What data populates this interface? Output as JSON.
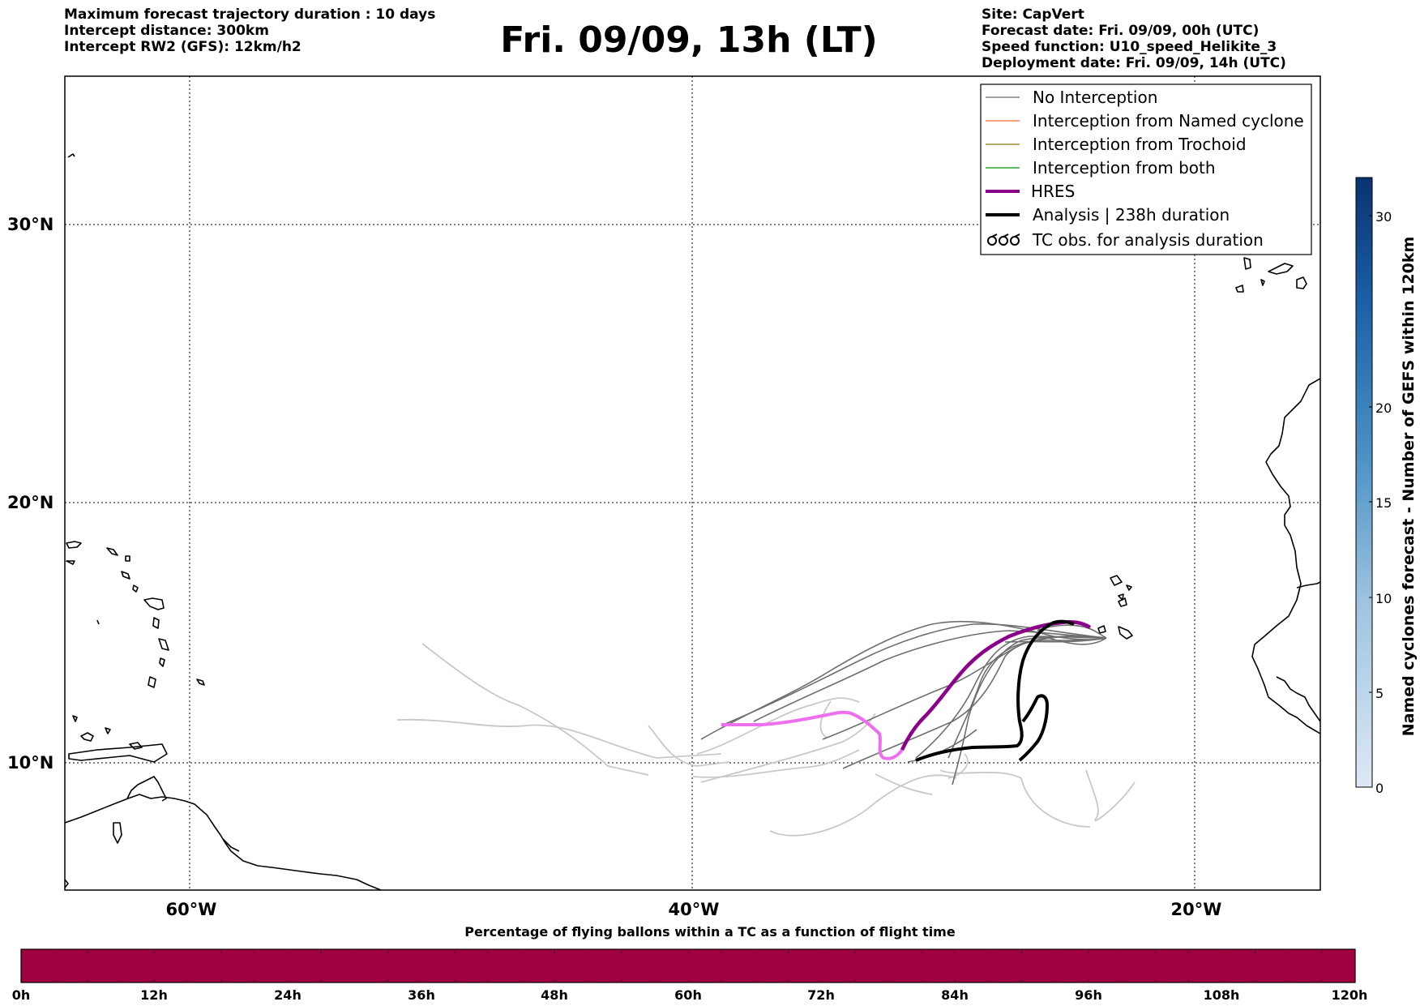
{
  "header": {
    "left": [
      "Maximum forecast trajectory duration : 10 days",
      "Intercept distance: 300km",
      "Intercept RW2 (GFS):  12km/h2"
    ],
    "title": "Fri. 09/09, 13h (LT)",
    "right": [
      "Site: CapVert",
      "Forecast date: Fri. 09/09, 00h (UTC)",
      "Speed function: U10_speed_Helikite_3",
      "Deployment date: Fri. 09/09, 14h (UTC)"
    ]
  },
  "map": {
    "lat_labels": [
      "30°N",
      "20°N",
      "10°N"
    ],
    "lon_labels": [
      "60°W",
      "40°W",
      "20°W"
    ],
    "lat_values": [
      30,
      20,
      10
    ],
    "lon_values": [
      -60,
      -40,
      -20
    ],
    "lon_range": [
      -65,
      -15
    ],
    "lat_range": [
      5.2,
      34.5
    ]
  },
  "legend": {
    "items": [
      {
        "label": "No Interception",
        "color": "#808080",
        "style": "thin"
      },
      {
        "label": "Interception from Named cyclone",
        "color": "#ff7f50",
        "style": "thin"
      },
      {
        "label": "Interception from Trochoid",
        "color": "#9b8b2e",
        "style": "thin"
      },
      {
        "label": "Interception from both",
        "color": "#2ca02c",
        "style": "thin"
      },
      {
        "label": "HRES",
        "color": "#8b008b",
        "style": "thick"
      },
      {
        "label": "Analysis | 238h duration",
        "color": "#000000",
        "style": "thick"
      },
      {
        "label": "TC obs. for analysis duration",
        "color": "#000000",
        "style": "symbol"
      }
    ]
  },
  "right_colorbar": {
    "label": "Named cyclones forecast - Number of GEFS within 120km",
    "ticks": [
      "0",
      "5",
      "10",
      "15",
      "20",
      "30"
    ],
    "tick_values": [
      0,
      5,
      10,
      15,
      20,
      30
    ],
    "range": [
      0,
      32
    ]
  },
  "bottom_colorbar": {
    "title": "Percentage of flying ballons within a TC as a function of flight time",
    "ticks": [
      "0h",
      "12h",
      "24h",
      "36h",
      "48h",
      "60h",
      "72h",
      "84h",
      "96h",
      "108h",
      "120h"
    ],
    "color": "#a0003e"
  },
  "colors": {
    "hres": "#8b008b",
    "hres_early": "#ee6fee",
    "analysis": "#000000",
    "no_interception": "#6e6e6e",
    "no_interception_light": "#c8c8c8"
  }
}
